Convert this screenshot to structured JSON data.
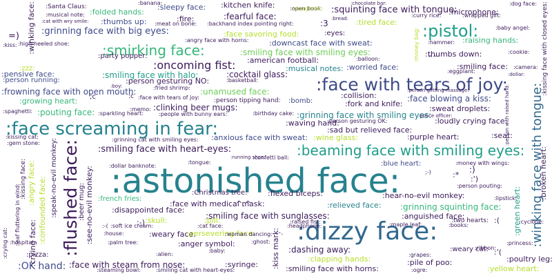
{
  "cloud": {
    "colors": {
      "purple": "#3b1a5a",
      "indigo": "#3e4a89",
      "blue": "#31688e",
      "teal": "#26828e",
      "green": "#1f9e89",
      "lime": "#35b779",
      "yellowgreen": "#6ece58",
      "yellow": "#b5de2b"
    },
    "words": {
      "w001": ":astonished face:",
      "w002": ":dizzy face:",
      "w003": ":face screaming in fear:",
      "w004": ":face with tears of joy:",
      "w005": ":beaming face with smiling eyes:",
      "w006": ":flushed face:",
      "w007": ":smirking face:",
      "w008": ":pistol:",
      "w009": ":winking face with tongue:",
      "w010": ":oncoming fist:",
      "w011": ":grinning face with big eyes:",
      "w012": ":squinting face with tongue:",
      "w013": ":smiling face with heart-eyes:",
      "w014": ":smiling face with smiling eyes:",
      "w015": ":grinning face with smiling eyes:",
      "w016": ":smiling face with halo:",
      "w017": ":face blowing a kiss:",
      "w018": ":OK hand:",
      "w019": ":face with steam from nose:",
      "w020": ":smiling face with sunglasses:",
      "w021": ":grinning squinting face:",
      "w022": ":dashing away:",
      "w023": ":sweat droplets:",
      "w024": ":loudly crying face:",
      "w025": ":clinking beer mugs:",
      "w026": ":pouting face:",
      "w027": ":cocktail glass:",
      "w028": ":american football:",
      "w029": ":musical notes:",
      "w030": ":worried face:",
      "w031": ":smiling face:",
      "w032": ":fork and knife:",
      "w033": ":collision:",
      "w034": ":unamused face:",
      "w035": ":frowning face with open mouth:",
      "w036": ":person gesturing NO:",
      "w037": ":pensive face:",
      "w038": ":party popper:",
      "w039": ":downcast face with sweat:",
      "w040": ":face savoring food:",
      "w041": ":thumbs down:",
      "w042": ":raising hands:",
      "w043": ":microphone:",
      "w044": ":tired face:",
      "w045": ":fearful face:",
      "w046": ":sleepy face:",
      "w047": ":kitchen knife:",
      "w048": ":folded hands:",
      "w049": ":thumbs up:",
      "w050": ":fire:",
      "w051": ":eyes:",
      "w052": ":sad but relieved face:",
      "w053": ":purple heart:",
      "w054": ":seat:",
      "w055": ":waving hand:",
      "w056": ":anxious face with sweat:",
      "w057": ":wine glass:",
      "w058": ":blue heart:",
      "w059": ":Christmas tree:",
      "w060": ":flexed biceps:",
      "w061": ":hear-no-evil monkey:",
      "w062": ":relieved face:",
      "w063": ":face with medical mask:",
      "w064": ":disappointed face:",
      "w065": ":anguished face:",
      "w066": ":two hearts:",
      "w067": ":weary face:",
      "w068": ":anger symbol:",
      "w069": ":persevering face:",
      "w070": ":syringe:",
      "w071": ":clapping hands:",
      "w072": ":pile of poo:",
      "w073": ":smiling face with horns:",
      "w074": ":poultry leg:",
      "w075": ":yellow heart:",
      "w076": ":weary cat:",
      "w077": ":pizza:",
      "w078": ":crying face:",
      "w079": ":angry face:",
      "w080": ":see-no-evil monkey:",
      "w081": ":speak-no-evil monkey:",
      "w082": ":confounded face:",
      "w083": ":kissing face:",
      "w084": ":beer mug:",
      "w085": ":skull:",
      "w086": ":pill:",
      "w087": ":french fries:",
      "w088": ":green heart:",
      "w089": ":broken heart:",
      "w090": ":kissing face with closed eyes:",
      "w091": ":growing heart:",
      "w092": ":person running:",
      "w093": ":basketball:",
      "w094": ":bomb:",
      "w095": ":zzz:",
      "w096": ":person tipping hand:",
      "w097": ":winking face:",
      "w098": ":Santa Claus:",
      "w099": ":banana:",
      "w100": ":open book:",
      "w101": ":dog face:",
      "w102": ":backhand index pointing right:",
      "w103": ":angry face with horns:",
      "w104": ":wrapped gift:",
      "w105": ":baby angel:",
      "w106": ":cookie:",
      "w107": ":hammer:",
      "w108": ":balloon:",
      "w109": ":eggplant:",
      "w110": ":camera:",
      "w111": ":person getting massage:",
      "w112": ":fried shrimp:",
      "w113": ":face with tears of joy:",
      "w114": ":memo:",
      "w115": ":sparkling heart:",
      "w116": ":people with bunny ears:",
      "w117": ":birthday cake:",
      "w118": ":person gesturing OK:",
      "w119": ":kissing cat:",
      "w120": ":gem stone:",
      "w121": ":grinning cat with smiling eyes:",
      "w122": ":dollar banknote:",
      "w123": ":tongue:",
      "w124": ":running shoe:",
      "w125": ":confetti ball:",
      "w126": ":money with wings:",
      "w127": ":person pouting:",
      "w128": ":lipstick:",
      "w129": ":soft ice cream:",
      "w130": ":cat face:",
      "w131": ":headphone:",
      "w132": ":raised fist:",
      "w133": ":maple leaf:",
      "w134": ":books:",
      "w135": ":house:",
      "w136": ":woman dancing:",
      "w137": ":palm tree:",
      "w138": ":ghost:",
      "w139": ":hospital:",
      "w140": ":alien:",
      "w141": ":baby:",
      "w142": ":ribbon:",
      "w143": ":princess:",
      "w144": ":steaming bowl:",
      "w145": ":smiling cat with heart-eyes:",
      "w146": ":ogre:",
      "w147": ":grapes:",
      "w148": ":crying cat:",
      "w149": ":leaf fluttering in wind:",
      "w150": ":spaghetti:",
      "w151": ":high-heeled shoe:",
      "w152": ":cat with wry smile:",
      "w153": ":musical note:",
      "w154": ":meat on bone:",
      "w155": ":doughnut:",
      "w156": ":bread:",
      "w157": ":curry rice:",
      "w158": ":chocolate bar:",
      "w159": ":money bag:",
      "w160": ":cyclone:",
      "w161": ":kiss:",
      "w162": ":person with raised hand:",
      "w163": ":boy:",
      "w164": ":police officer:",
      "w165": ":kiss mark:",
      "w166": ":dollar:",
      "e01": "=)",
      "e02": ":3",
      "e03": ":-)",
      "e04": ":)",
      "e05": ":')",
      "e06": ":*",
      "e07": "^.^",
      "e08": ":(",
      "e09": ":-(",
      "e10": ":'(",
      "e11": ":-.",
      "e12": ";c",
      "e13": "^^",
      "e14": ";-)",
      "e15": ":c"
    }
  }
}
